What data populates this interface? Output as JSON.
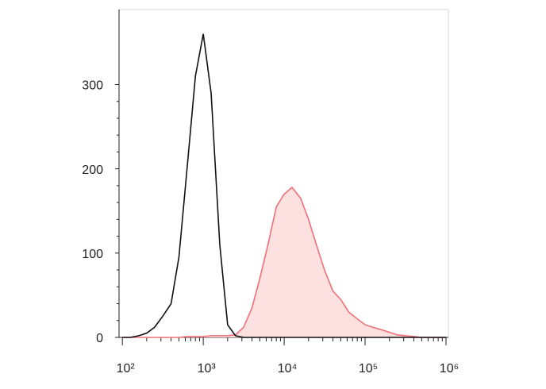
{
  "chart_data": {
    "type": "line",
    "xscale": "log",
    "x": [
      100,
      125,
      160,
      200,
      250,
      315,
      400,
      500,
      630,
      800,
      1000,
      1250,
      1600,
      2000,
      2500,
      3150,
      4000,
      5000,
      6300,
      8000,
      10000,
      12500,
      16000,
      20000,
      25000,
      31500,
      40000,
      50000,
      63000,
      80000,
      100000,
      125000,
      160000,
      200000,
      250000,
      315000,
      400000,
      500000,
      630000,
      800000,
      1000000
    ],
    "series": [
      {
        "color": "#f07078",
        "fill": "#fde0e0",
        "values": [
          0,
          0,
          0,
          0,
          0,
          0,
          0,
          0,
          1,
          1,
          1,
          2,
          2,
          2,
          3,
          12,
          35,
          70,
          110,
          155,
          170,
          178,
          165,
          140,
          110,
          80,
          55,
          45,
          30,
          22,
          15,
          12,
          9,
          6,
          3,
          2,
          1,
          0,
          0,
          0,
          0
        ]
      },
      {
        "color": "#111111",
        "values": [
          0,
          0,
          2,
          5,
          12,
          25,
          40,
          95,
          200,
          310,
          360,
          290,
          110,
          15,
          2,
          0,
          0,
          0,
          0,
          0,
          0,
          0,
          0,
          0,
          0,
          0,
          0,
          0,
          0,
          0,
          0,
          0,
          0,
          0,
          0,
          0,
          0,
          0,
          0,
          0,
          0
        ]
      }
    ],
    "xlim": [
      91,
      1070000
    ],
    "xticks": [
      {
        "value": 100,
        "label": "10²"
      },
      {
        "value": 1000,
        "label": "10³"
      },
      {
        "value": 10000,
        "label": "10⁴"
      },
      {
        "value": 100000,
        "label": "10⁵"
      },
      {
        "value": 1000000,
        "label": "10⁶"
      }
    ],
    "ylim": [
      0,
      389
    ],
    "yticks": [
      0,
      100,
      200,
      300
    ]
  }
}
